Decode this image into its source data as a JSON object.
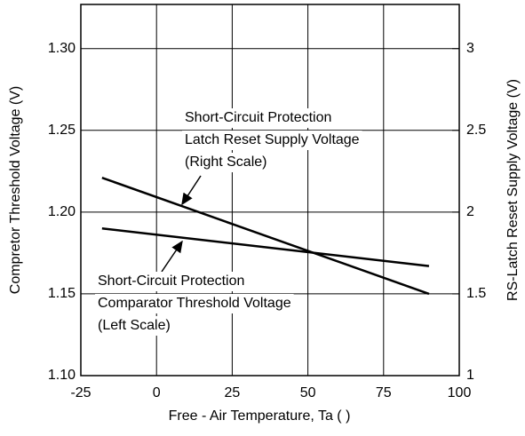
{
  "chart_data": {
    "type": "line",
    "x_label": "Free - Air Temperature, Ta (   )",
    "y_label": "Compretor Threshold Voltage (V)",
    "y2_label": "RS-Latch Reset Supply Voltage  (V)",
    "xlim": [
      -25,
      100
    ],
    "xticks": [
      -25,
      0,
      25,
      50,
      75,
      100
    ],
    "ylim": [
      1.1,
      1.327
    ],
    "yticks": [
      {
        "value": 1.1,
        "label": "1.10"
      },
      1.15,
      {
        "value": 1.2,
        "label": "1.20"
      },
      1.25,
      {
        "value": 1.3,
        "label": "1.30"
      }
    ],
    "y2lim": [
      1,
      3.27
    ],
    "y2ticks": [
      1,
      1.5,
      2,
      2.5,
      3
    ],
    "grid": true,
    "series": [
      {
        "name": "Short-Circuit Protection Comparator Threshold Voltage",
        "color": "#000000",
        "x": [
          -18,
          90
        ],
        "values": [
          1.19,
          1.167
        ]
      },
      {
        "name": "Short-Circuit Protection Latch Reset Supply Voltage",
        "color": "#000000",
        "axis": "y2",
        "x": [
          -18,
          90
        ],
        "values": [
          2.21,
          1.5
        ]
      }
    ],
    "annotations": [
      {
        "lines": [
          "Short-Circuit Protection",
          "Latch Reset Supply Voltage",
          "(Right Scale)"
        ]
      },
      {
        "lines": [
          "Short-Circuit Protection",
          "Comparator Threshold Voltage",
          "(Left Scale)"
        ]
      }
    ]
  }
}
